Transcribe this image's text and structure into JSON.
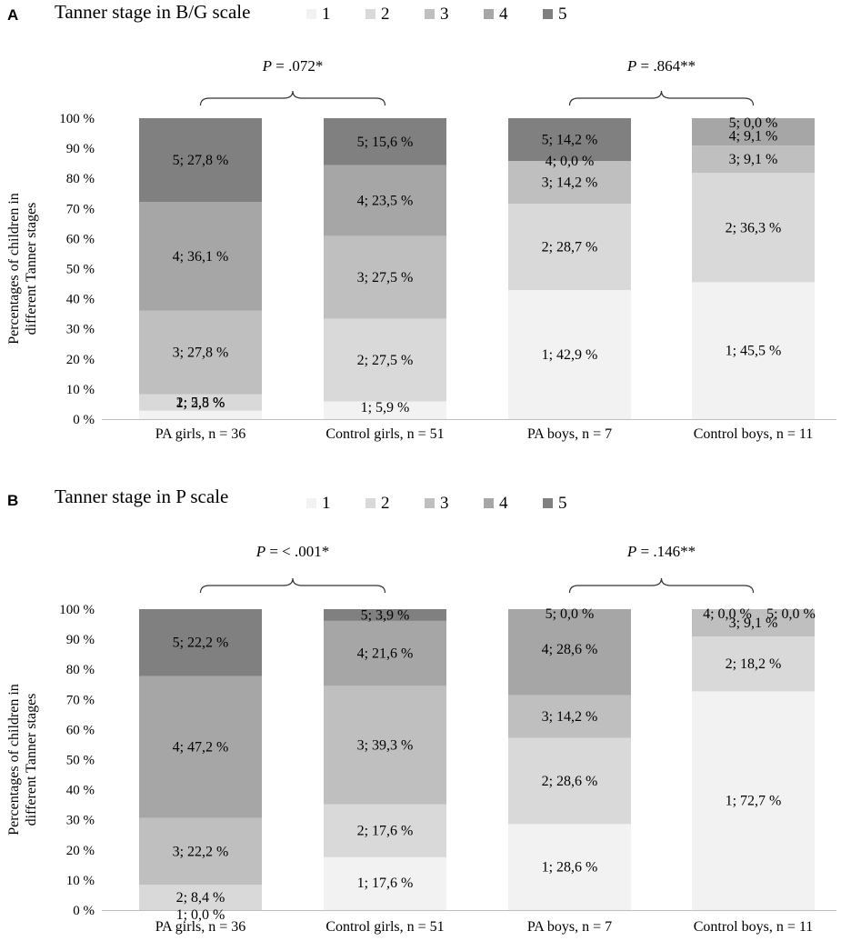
{
  "colors": {
    "stage1": "#f2f2f2",
    "stage2": "#d9d9d9",
    "stage3": "#bfbfbf",
    "stage4": "#a6a6a6",
    "stage5": "#808080"
  },
  "legend": [
    "1",
    "2",
    "3",
    "4",
    "5"
  ],
  "chart_data": [
    {
      "type": "bar",
      "stacked": true,
      "panel": "A",
      "title": "Tanner stage in B/G scale",
      "ylabel_lines": [
        "Percentages of children in",
        "different Tanner stages"
      ],
      "ylim": [
        0,
        100
      ],
      "yticks": [
        "0 %",
        "10 %",
        "20 %",
        "30 %",
        "40 %",
        "50 %",
        "60 %",
        "70 %",
        "80 %",
        "90 %",
        "100 %"
      ],
      "categories": [
        "PA girls, n = 36",
        "Control girls, n = 51",
        "PA boys, n = 7",
        "Control boys, n = 11"
      ],
      "series": [
        {
          "name": "1",
          "values": [
            2.8,
            5.9,
            42.9,
            45.5
          ]
        },
        {
          "name": "2",
          "values": [
            5.5,
            27.5,
            28.7,
            36.3
          ]
        },
        {
          "name": "3",
          "values": [
            27.8,
            27.5,
            14.2,
            9.1
          ]
        },
        {
          "name": "4",
          "values": [
            36.1,
            23.5,
            0.0,
            9.1
          ]
        },
        {
          "name": "5",
          "values": [
            27.8,
            15.6,
            14.2,
            0.0
          ]
        }
      ],
      "labels": [
        [
          "1; 2,8 %",
          "1; 5,9 %",
          "1; 42,9 %",
          "1; 45,5 %"
        ],
        [
          "2; 5,5 %",
          "2; 27,5 %",
          "2; 28,7 %",
          "2; 36,3 %"
        ],
        [
          "3; 27,8 %",
          "3; 27,5 %",
          "3; 14,2 %",
          "3; 9,1 %"
        ],
        [
          "4; 36,1 %",
          "4; 23,5 %",
          "4; 0,0 %",
          "4; 9,1 %"
        ],
        [
          "5; 27,8 %",
          "5; 15,6 %",
          "5; 14,2 %",
          "5; 0,0 %"
        ]
      ],
      "p_values": [
        "P = .072*",
        "P = .864**"
      ]
    },
    {
      "type": "bar",
      "stacked": true,
      "panel": "B",
      "title": "Tanner stage in P scale",
      "ylabel_lines": [
        "Percentages of children in",
        "different Tanner stages"
      ],
      "ylim": [
        0,
        100
      ],
      "yticks": [
        "0 %",
        "10 %",
        "20 %",
        "30 %",
        "40 %",
        "50 %",
        "60 %",
        "70 %",
        "80 %",
        "90 %",
        "100 %"
      ],
      "categories": [
        "PA girls, n = 36",
        "Control girls, n = 51",
        "PA boys, n = 7",
        "Control boys, n = 11"
      ],
      "series": [
        {
          "name": "1",
          "values": [
            0.0,
            17.6,
            28.6,
            72.7
          ]
        },
        {
          "name": "2",
          "values": [
            8.4,
            17.6,
            28.6,
            18.2
          ]
        },
        {
          "name": "3",
          "values": [
            22.2,
            39.3,
            14.2,
            9.1
          ]
        },
        {
          "name": "4",
          "values": [
            47.2,
            21.6,
            28.6,
            0.0
          ]
        },
        {
          "name": "5",
          "values": [
            22.2,
            3.9,
            0.0,
            0.0
          ]
        }
      ],
      "labels": [
        [
          "1; 0,0 %",
          "1; 17,6 %",
          "1; 28,6 %",
          "1; 72,7 %"
        ],
        [
          "2; 8,4 %",
          "2; 17,6 %",
          "2; 28,6 %",
          "2; 18,2 %"
        ],
        [
          "3; 22,2 %",
          "3; 39,3 %",
          "3; 14,2 %",
          "3; 9,1 %"
        ],
        [
          "4; 47,2 %",
          "4; 21,6 %",
          "4; 28,6 %",
          "4; 0,0 %"
        ],
        [
          "5; 22,2 %",
          "5; 3,9 %",
          "5; 0,0 %",
          "5; 0,0 %"
        ]
      ],
      "p_values": [
        "P = < .001*",
        "P = .146**"
      ]
    }
  ]
}
